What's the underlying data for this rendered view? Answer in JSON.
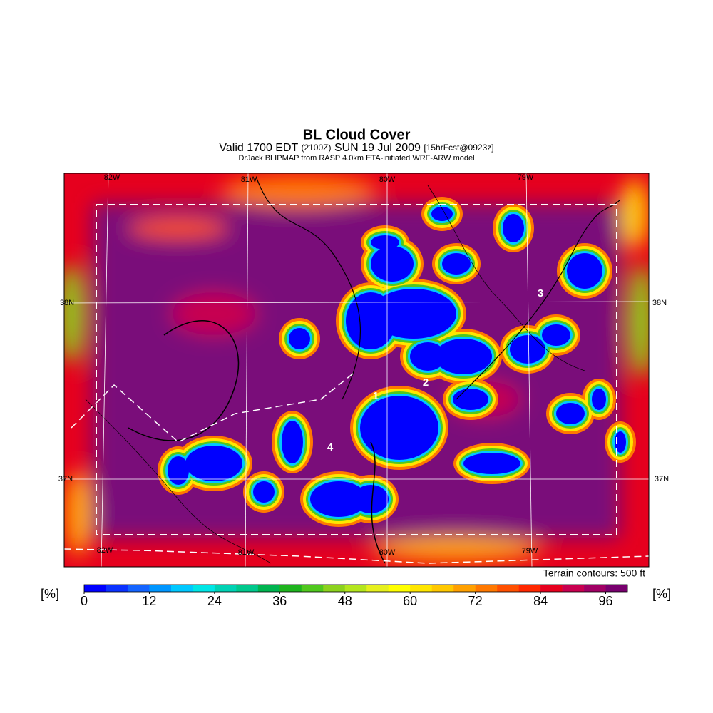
{
  "title": "BL Cloud Cover",
  "subtitle": {
    "valid": "Valid 1700 EDT",
    "utc": "(2100Z)",
    "date": "SUN 19 Jul 2009",
    "forecast": "[15hrFcst@0923z]"
  },
  "model_line": "DrJack BLIPMAP from RASP 4.0km ETA-initiated WRF-ARW model",
  "map": {
    "lon_labels_top": [
      "82W",
      "81W",
      "80W",
      "79W"
    ],
    "lon_labels_bottom": [
      "82W",
      "81W",
      "80W",
      "79W"
    ],
    "lat_labels_left": [
      "38N",
      "37N"
    ],
    "lat_labels_right": [
      "38N",
      "37N"
    ],
    "site_labels": [
      "1",
      "2",
      "3",
      "4"
    ],
    "footnote": "Terrain contours: 500 ft"
  },
  "colorbar": {
    "unit_label": "[%]",
    "range": [
      0,
      100
    ],
    "ticks": [
      0,
      12,
      24,
      36,
      48,
      60,
      72,
      84,
      96
    ],
    "colors": [
      "#0000ff",
      "#0a32ff",
      "#1464ff",
      "#0096ff",
      "#00c8ff",
      "#00e6e6",
      "#00d2b4",
      "#00c88c",
      "#00b450",
      "#1eb41e",
      "#50c81e",
      "#8cd21e",
      "#b4e61e",
      "#e6f01e",
      "#ffff00",
      "#ffe600",
      "#ffc800",
      "#ffa000",
      "#ff7800",
      "#ff5000",
      "#ff2800",
      "#e6001e",
      "#c80050",
      "#a00064",
      "#78006e"
    ]
  }
}
